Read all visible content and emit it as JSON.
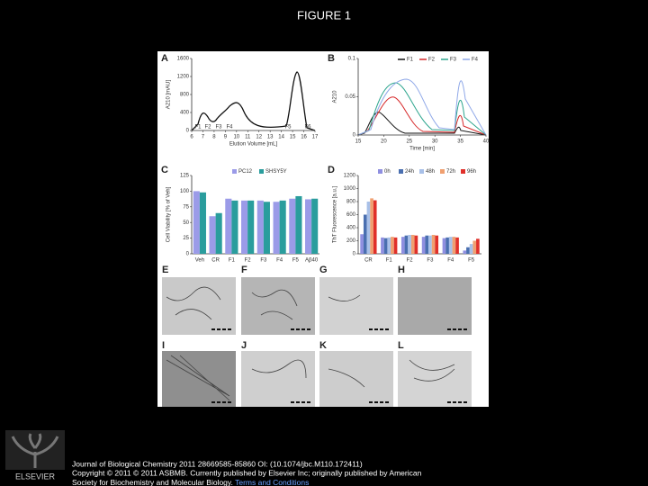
{
  "header": {
    "title": "FIGURE 1"
  },
  "figure": {
    "a": {
      "letter": "A",
      "y_label": "A210 [mAU]",
      "x_label": "Elution Volume [mL]",
      "ylim": [
        0,
        1600
      ],
      "yticks": [
        0,
        400,
        800,
        1200,
        1600
      ],
      "xlim": [
        6,
        17
      ],
      "xticks": [
        6,
        7,
        8,
        9,
        10,
        11,
        12,
        13,
        14,
        15,
        16,
        17
      ],
      "fractions": [
        "F1",
        "F2",
        "F3",
        "F4",
        "F5",
        "F6"
      ]
    },
    "b": {
      "letter": "B",
      "y_label": "A210",
      "x_label": "Time [min]",
      "ylim": [
        0,
        0.1
      ],
      "yticks": [
        0,
        0.05,
        0.1
      ],
      "xlim": [
        15,
        40
      ],
      "xticks": [
        15,
        20,
        25,
        30,
        35,
        40
      ],
      "legend": [
        {
          "name": "F1",
          "color": "#111111"
        },
        {
          "name": "F2",
          "color": "#d62728"
        },
        {
          "name": "F3",
          "color": "#2ca58d"
        },
        {
          "name": "F4",
          "color": "#8fa8e8"
        }
      ]
    },
    "c": {
      "letter": "C",
      "y_label": "Cell Viability [% of Veh]",
      "ylim": [
        0,
        125
      ],
      "yticks": [
        0,
        25,
        50,
        75,
        100,
        125
      ],
      "categories": [
        "Veh",
        "CR",
        "F1",
        "F2",
        "F3",
        "F4",
        "F5",
        "Aβ40"
      ],
      "series": [
        {
          "name": "PC12",
          "color": "#9b9be8",
          "values": [
            100,
            60,
            88,
            85,
            85,
            83,
            88,
            87
          ]
        },
        {
          "name": "SHSY5Y",
          "color": "#2a9d9d",
          "values": [
            98,
            65,
            85,
            85,
            83,
            85,
            92,
            88
          ]
        }
      ]
    },
    "d": {
      "letter": "D",
      "y_label": "ThT Fluorescence [a.u.]",
      "ylim": [
        0,
        1200
      ],
      "yticks": [
        0,
        200,
        400,
        600,
        800,
        1000,
        1200
      ],
      "categories": [
        "CR",
        "F1",
        "F2",
        "F3",
        "F4",
        "F5"
      ],
      "series": [
        {
          "name": "0h",
          "color": "#8f8fe0",
          "values": [
            300,
            250,
            260,
            260,
            240,
            50
          ]
        },
        {
          "name": "24h",
          "color": "#4a6fb0",
          "values": [
            600,
            240,
            280,
            280,
            250,
            100
          ]
        },
        {
          "name": "48h",
          "color": "#a8c0e8",
          "values": [
            800,
            250,
            290,
            280,
            260,
            150
          ]
        },
        {
          "name": "72h",
          "color": "#f0a070",
          "values": [
            850,
            260,
            290,
            290,
            260,
            200
          ]
        },
        {
          "name": "96h",
          "color": "#e0302a",
          "values": [
            820,
            250,
            280,
            280,
            250,
            230
          ]
        }
      ]
    },
    "em": [
      "E",
      "F",
      "G",
      "H",
      "I",
      "J",
      "K",
      "L"
    ]
  },
  "footer": {
    "logo": "ELSEVIER",
    "line1": "Journal of Biological Chemistry 2011 28669585-85860 OI: (10.1074/jbc.M110.172411)",
    "line2": "Copyright © 2011 © 2011 ASBMB. Currently published by Elsevier Inc; originally published by American",
    "line3": "Society for Biochemistry and Molecular Biology.",
    "link": "Terms and Conditions"
  }
}
